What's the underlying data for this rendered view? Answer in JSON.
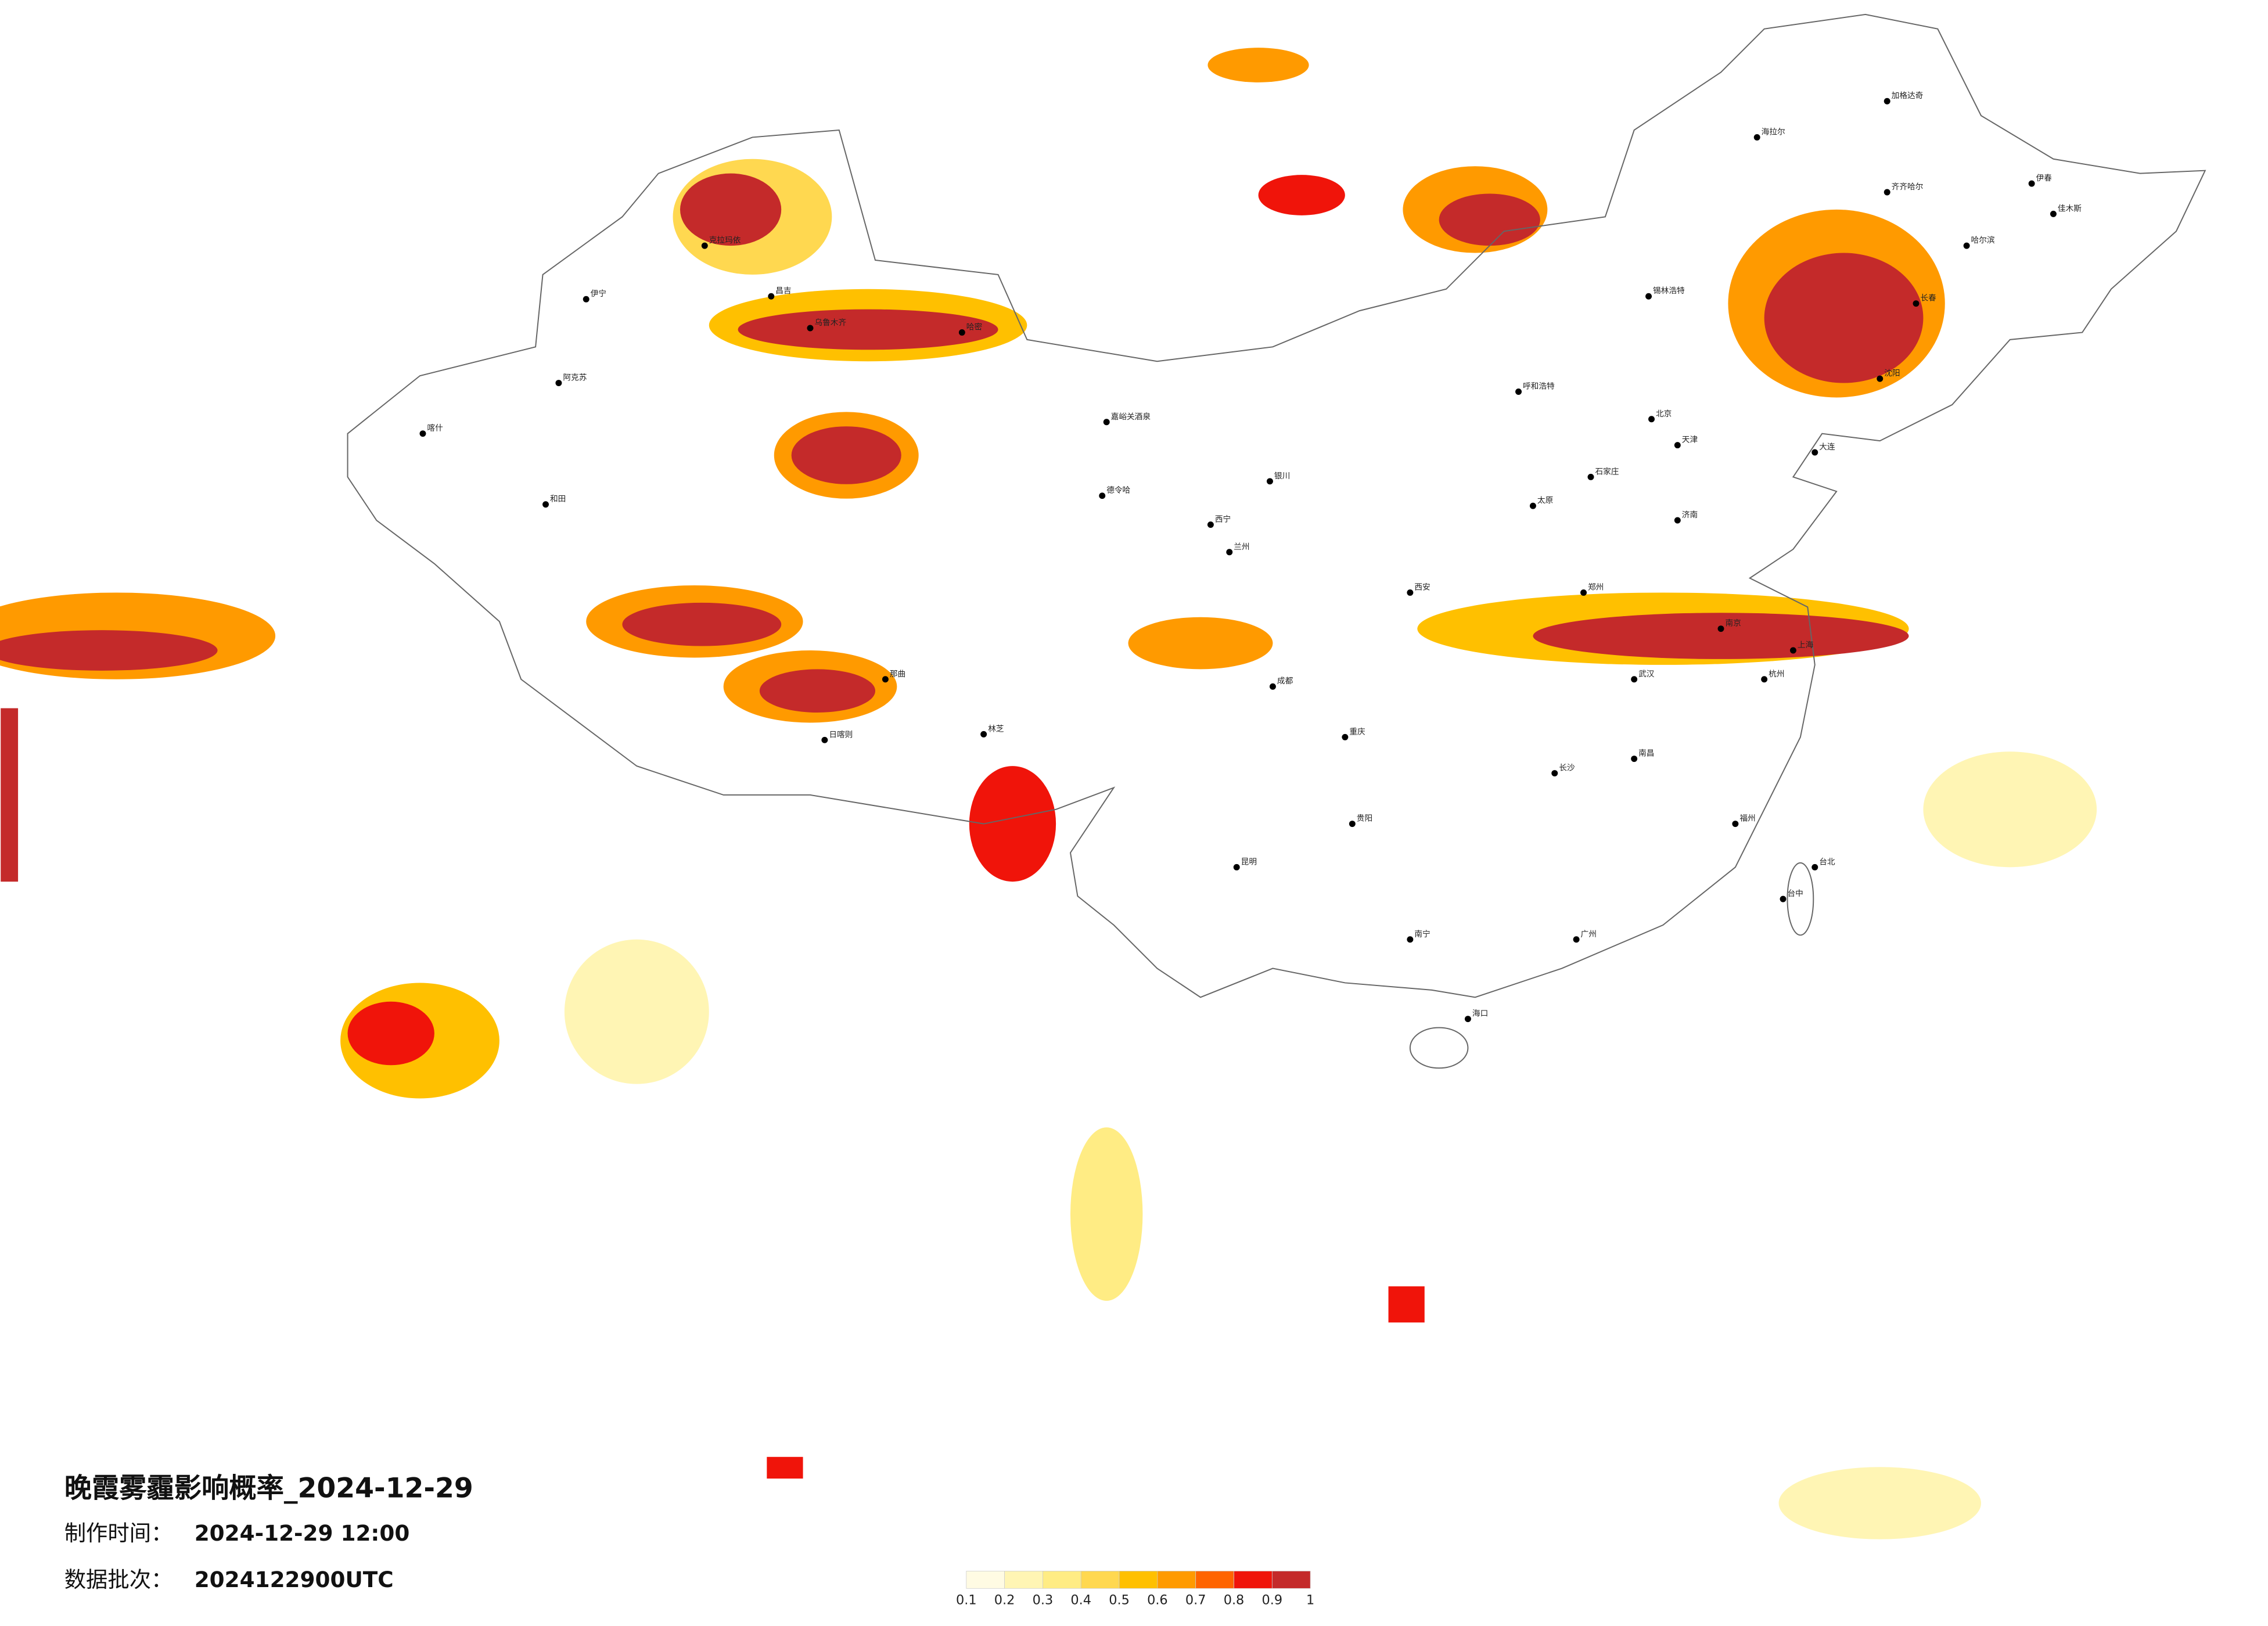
{
  "title": "晚霞雾霾影响概率_2024-12-29",
  "info": [
    {
      "label": "制作时间：",
      "value": "2024-12-29 12:00"
    },
    {
      "label": "数据批次：",
      "value": "2024122900UTC"
    }
  ],
  "legend": {
    "ticks": [
      0.1,
      0.2,
      0.3,
      0.4,
      0.5,
      0.6,
      0.7,
      0.8,
      0.9,
      1
    ],
    "colors": [
      "#fffbe3",
      "#fff5b4",
      "#ffec84",
      "#ffd850",
      "#ffc000",
      "#ff9a00",
      "#ff6400",
      "#f0140a",
      "#c42a2a"
    ]
  },
  "cities": [
    "伊宁",
    "克拉玛依",
    "阿克苏",
    "和田",
    "喀什",
    "昌吉",
    "乌鲁木齐",
    "哈密",
    "嘉峪关酒泉",
    "德令哈",
    "日喀则",
    "林芝",
    "那曲",
    "西宁",
    "兰州",
    "银川",
    "呼和浩特",
    "北京",
    "天津",
    "石家庄",
    "济南",
    "太原",
    "郑州",
    "西安",
    "成都",
    "重庆",
    "武汉",
    "长沙",
    "南昌",
    "杭州",
    "南京",
    "上海",
    "福州",
    "广州",
    "南宁",
    "海口",
    "昆明",
    "贵阳",
    "台北",
    "台中",
    "哈尔滨",
    "长春",
    "沈阳",
    "大连",
    "齐齐哈尔",
    "加格达奇",
    "海拉尔",
    "锡林浩特",
    "伊春",
    "佳木斯"
  ]
}
